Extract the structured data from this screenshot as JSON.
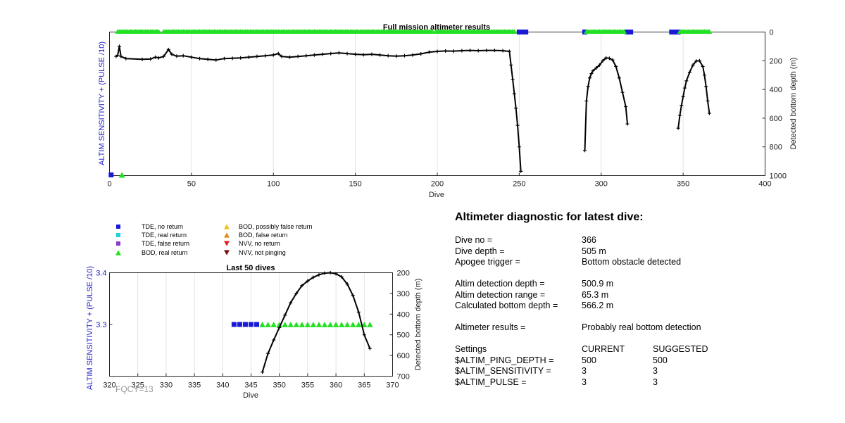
{
  "chart_data": [
    {
      "type": "scatter",
      "title": "Full mission altimeter results",
      "xlabel": "Dive",
      "ylabel_left": "ALTIM SENSITIVITY + (PULSE /10)",
      "ylabel_right": "Detected bottom depth (m)",
      "xlim": [
        0,
        400
      ],
      "ylim_right": [
        0,
        1000
      ],
      "right_axis_reversed": true,
      "x_ticks": [
        "0",
        "50",
        "100",
        "150",
        "200",
        "250",
        "300",
        "350",
        "400"
      ],
      "y_right_ticks": [
        "0",
        "200",
        "400",
        "600",
        "800",
        "1000"
      ],
      "grid": "vertical",
      "series": [
        {
          "name": "TDE, no return",
          "marker": "square",
          "color": "#1a1ad6",
          "dives": [
            1,
            250,
            252,
            254,
            290,
            316,
            318,
            343,
            345,
            347
          ]
        },
        {
          "name": "BOD, real return",
          "marker": "triangle",
          "color": "#22e022",
          "dive_ranges": [
            [
              5,
              30
            ],
            [
              33,
              197
            ],
            [
              199,
              247
            ],
            [
              291,
              314
            ],
            [
              348,
              366
            ]
          ]
        },
        {
          "name": "Detected bottom depth",
          "marker": "plus-line",
          "color": "#000000",
          "points": [
            [
              4,
              170
            ],
            [
              5,
              162
            ],
            [
              6,
              100
            ],
            [
              7,
              170
            ],
            [
              10,
              185
            ],
            [
              20,
              190
            ],
            [
              25,
              188
            ],
            [
              28,
              175
            ],
            [
              30,
              180
            ],
            [
              33,
              170
            ],
            [
              36,
              122
            ],
            [
              38,
              155
            ],
            [
              41,
              168
            ],
            [
              45,
              165
            ],
            [
              50,
              175
            ],
            [
              55,
              185
            ],
            [
              60,
              190
            ],
            [
              65,
              195
            ],
            [
              70,
              185
            ],
            [
              75,
              183
            ],
            [
              80,
              180
            ],
            [
              85,
              175
            ],
            [
              90,
              170
            ],
            [
              95,
              165
            ],
            [
              100,
              160
            ],
            [
              103,
              150
            ],
            [
              105,
              170
            ],
            [
              110,
              175
            ],
            [
              115,
              170
            ],
            [
              120,
              165
            ],
            [
              125,
              160
            ],
            [
              130,
              155
            ],
            [
              135,
              150
            ],
            [
              140,
              145
            ],
            [
              145,
              150
            ],
            [
              150,
              155
            ],
            [
              155,
              158
            ],
            [
              160,
              155
            ],
            [
              165,
              160
            ],
            [
              170,
              165
            ],
            [
              175,
              168
            ],
            [
              180,
              165
            ],
            [
              185,
              160
            ],
            [
              190,
              152
            ],
            [
              195,
              140
            ],
            [
              200,
              135
            ],
            [
              205,
              132
            ],
            [
              210,
              133
            ],
            [
              215,
              130
            ],
            [
              220,
              128
            ],
            [
              225,
              130
            ],
            [
              230,
              128
            ],
            [
              235,
              128
            ],
            [
              240,
              130
            ],
            [
              244,
              135
            ],
            [
              245,
              230
            ],
            [
              246,
              330
            ],
            [
              247,
              430
            ],
            [
              248,
              530
            ],
            [
              249,
              650
            ],
            [
              250,
              800
            ],
            [
              251,
              970
            ],
            [
              290,
              825
            ],
            [
              291,
              480
            ],
            [
              292,
              380
            ],
            [
              293,
              320
            ],
            [
              294,
              290
            ],
            [
              295,
              270
            ],
            [
              297,
              250
            ],
            [
              299,
              230
            ],
            [
              301,
              200
            ],
            [
              303,
              180
            ],
            [
              305,
              183
            ],
            [
              307,
              195
            ],
            [
              309,
              240
            ],
            [
              311,
              320
            ],
            [
              313,
              420
            ],
            [
              315,
              520
            ],
            [
              316,
              640
            ],
            [
              347,
              670
            ],
            [
              348,
              580
            ],
            [
              349,
              510
            ],
            [
              350,
              450
            ],
            [
              351,
              390
            ],
            [
              352,
              340
            ],
            [
              354,
              280
            ],
            [
              356,
              230
            ],
            [
              358,
              202
            ],
            [
              360,
              200
            ],
            [
              362,
              240
            ],
            [
              363,
              300
            ],
            [
              364,
              380
            ],
            [
              365,
              480
            ],
            [
              366,
              566
            ]
          ]
        }
      ],
      "left_axis_markers": [
        {
          "name": "TDE, no return",
          "dive": 1
        },
        {
          "name": "BOD, real return",
          "dive": 5
        }
      ]
    },
    {
      "type": "scatter",
      "title": "Last 50 dives",
      "xlabel": "Dive",
      "ylabel_left": "ALTIM SENSITIVITY + (PULSE /10)",
      "ylabel_right": "Detected bottom depth (m)",
      "xlim": [
        320,
        370
      ],
      "ylim_left": [
        3.2,
        3.4
      ],
      "ylim_right": [
        200,
        700
      ],
      "right_axis_reversed": true,
      "x_ticks": [
        "320",
        "325",
        "330",
        "335",
        "340",
        "345",
        "350",
        "355",
        "360",
        "365",
        "370"
      ],
      "y_left_ticks": [
        "3.3",
        "3.4"
      ],
      "y_right_ticks": [
        "200",
        "300",
        "400",
        "500",
        "600",
        "700"
      ],
      "grid": "vertical",
      "series": [
        {
          "name": "TDE, no return",
          "marker": "square",
          "color": "#1a1ad6",
          "level": 3.3,
          "dives": [
            342,
            343,
            344,
            345,
            346
          ]
        },
        {
          "name": "BOD, real return",
          "marker": "triangle",
          "color": "#22e022",
          "level": 3.3,
          "dives": [
            347,
            348,
            349,
            350,
            351,
            352,
            353,
            354,
            355,
            356,
            357,
            358,
            359,
            360,
            361,
            362,
            363,
            364,
            365,
            366
          ]
        },
        {
          "name": "Detected bottom depth",
          "marker": "plus-line",
          "color": "#000000",
          "points": [
            [
              347,
              680
            ],
            [
              348,
              590
            ],
            [
              349,
              525
            ],
            [
              350,
              465
            ],
            [
              351,
              405
            ],
            [
              352,
              345
            ],
            [
              353,
              300
            ],
            [
              354,
              262
            ],
            [
              355,
              240
            ],
            [
              356,
              222
            ],
            [
              357,
              210
            ],
            [
              358,
              202
            ],
            [
              359,
              200
            ],
            [
              360,
              205
            ],
            [
              361,
              220
            ],
            [
              362,
              255
            ],
            [
              363,
              310
            ],
            [
              364,
              390
            ],
            [
              365,
              500
            ],
            [
              366,
              566
            ]
          ]
        }
      ]
    }
  ],
  "legend": {
    "left": [
      {
        "label": "TDE, no return",
        "marker": "square",
        "color": "#1a1ad6"
      },
      {
        "label": "TDE, real return",
        "marker": "square",
        "color": "#20d0e0"
      },
      {
        "label": "TDE, false return",
        "marker": "square",
        "color": "#8a3cc8"
      },
      {
        "label": "BOD, real return",
        "marker": "triangle-up",
        "color": "#22e022"
      }
    ],
    "right": [
      {
        "label": "BOD, possibly false return",
        "marker": "triangle-up",
        "color": "#f0c020"
      },
      {
        "label": "BOD, false return",
        "marker": "triangle-up",
        "color": "#e08a20"
      },
      {
        "label": "NVV, no return",
        "marker": "triangle-down",
        "color": "#e02020"
      },
      {
        "label": "NVV, not pinging",
        "marker": "triangle-down",
        "color": "#7a1010"
      }
    ]
  },
  "annotation": "FQCY=13",
  "diagnostic": {
    "heading": "Altimeter diagnostic for latest dive:",
    "dive_no_label": "Dive no =",
    "dive_no_value": "366",
    "dive_depth_label": "Dive depth =",
    "dive_depth_value": "505 m",
    "apogee_label": "Apogee trigger =",
    "apogee_value": "Bottom obstacle detected",
    "altim_depth_label": "Altim detection depth =",
    "altim_depth_value": "500.9 m",
    "altim_range_label": "Altim detection range =",
    "altim_range_value": "65.3 m",
    "calc_bottom_label": "Calculated bottom depth =",
    "calc_bottom_value": "566.2 m",
    "results_label": "Altimeter results =",
    "results_value": "Probably real bottom detection",
    "settings_label": "Settings",
    "current_header": "CURRENT",
    "suggested_header": "SUGGESTED",
    "ping_depth_label": "$ALTIM_PING_DEPTH =",
    "ping_depth_current": "500",
    "ping_depth_suggested": "500",
    "sensitivity_label": "$ALTIM_SENSITIVITY =",
    "sensitivity_current": "3",
    "sensitivity_suggested": "3",
    "pulse_label": "$ALTIM_PULSE =",
    "pulse_current": "3",
    "pulse_suggested": "3"
  }
}
